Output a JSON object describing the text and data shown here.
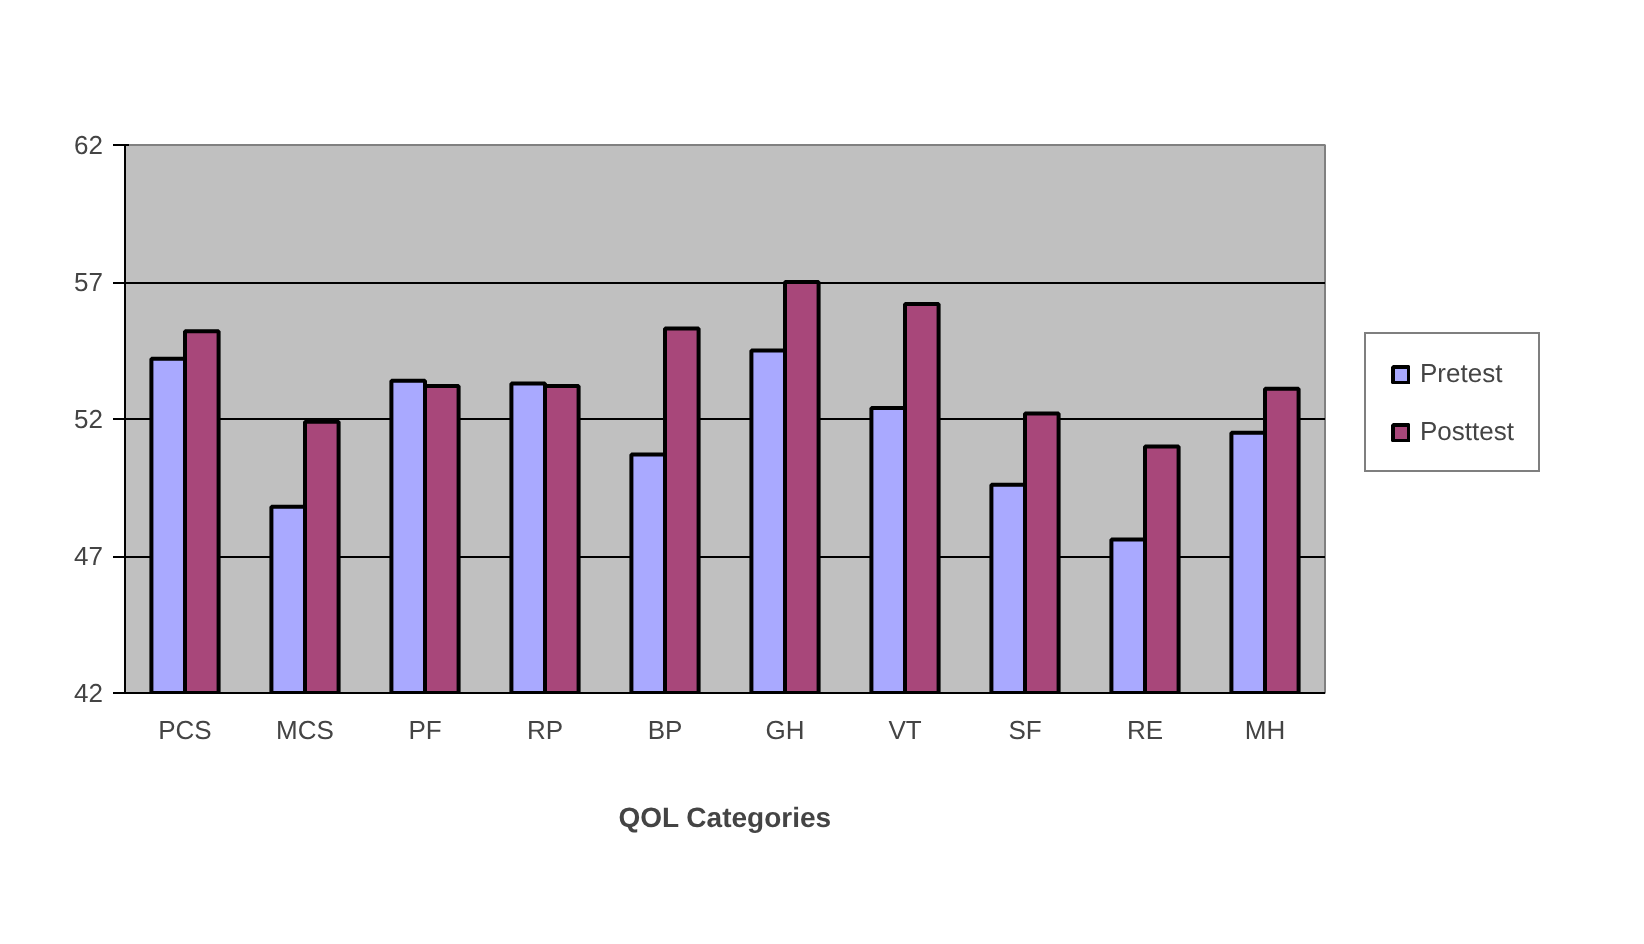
{
  "chart_data": {
    "type": "bar",
    "xlabel": "QOL Categories",
    "categories": [
      "PCS",
      "MCS",
      "PF",
      "RP",
      "BP",
      "GH",
      "VT",
      "SF",
      "RE",
      "MH"
    ],
    "series": [
      {
        "name": "Pretest",
        "color": "#a9a9ff",
        "values": [
          54.2,
          48.8,
          53.4,
          53.3,
          50.7,
          54.5,
          52.4,
          49.6,
          47.6,
          51.5
        ]
      },
      {
        "name": "Posttest",
        "color": "#a8477a",
        "values": [
          55.2,
          51.9,
          53.2,
          53.2,
          55.3,
          57.0,
          56.2,
          52.2,
          51.0,
          53.1
        ]
      }
    ],
    "ylim": [
      42,
      62
    ],
    "yticks": [
      42,
      47,
      52,
      57,
      62
    ],
    "grid": "y",
    "legend": "right"
  }
}
